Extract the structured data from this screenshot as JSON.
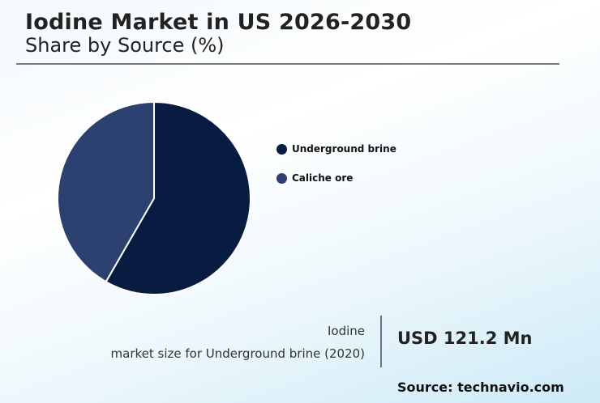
{
  "header": {
    "title": "Iodine Market in US 2026-2030",
    "subtitle": "Share by Source (%)"
  },
  "legend": {
    "items": [
      {
        "label": "Underground brine",
        "color": "#081c42"
      },
      {
        "label": "Caliche ore",
        "color": "#2c4170"
      }
    ]
  },
  "kpi": {
    "label_line1": "Iodine",
    "label_line2": "market size for Underground brine (2020)",
    "value": "USD 121.2 Mn"
  },
  "source": "Source: technavio.com",
  "chart_data": {
    "type": "pie",
    "title": "Iodine Market in US 2026-2030",
    "subtitle": "Share by Source (%)",
    "categories": [
      "Underground brine",
      "Caliche ore"
    ],
    "values": [
      58.3,
      41.7
    ],
    "colors": [
      "#081c42",
      "#2c4170"
    ],
    "start_angle": "12 o'clock, clockwise",
    "legend_position": "right"
  }
}
